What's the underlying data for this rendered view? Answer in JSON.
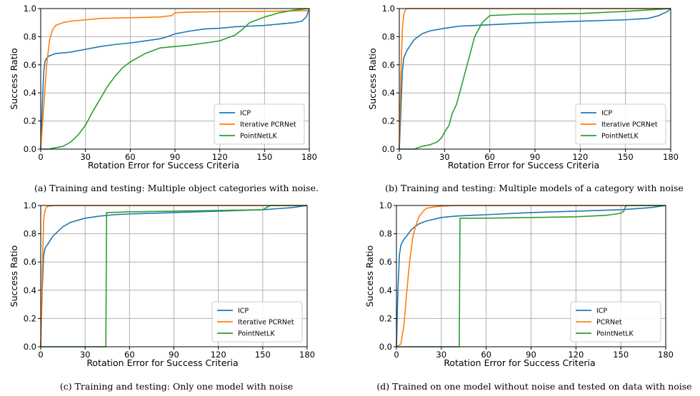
{
  "colors": {
    "ICP": "#1f77b4",
    "Iterative PCRNet": "#ff7f0e",
    "PCRNet": "#ff7f0e",
    "PointNetLK": "#2ca02c",
    "grid": "#b0b0b0"
  },
  "chart_data": [
    {
      "type": "line",
      "caption": "(a) Training and testing: Multiple object categories with noise.",
      "xlabel": "Rotation Error for Success Criteria",
      "ylabel": "Success Ratio",
      "xlim": [
        0,
        180
      ],
      "ylim": [
        0,
        1
      ],
      "xticks": [
        "0",
        "30",
        "60",
        "90",
        "120",
        "150",
        "180"
      ],
      "yticks": [
        "0.0",
        "0.2",
        "0.4",
        "0.6",
        "0.8",
        "1.0"
      ],
      "grid": true,
      "legend_position": "lower-right",
      "series": [
        {
          "name": "ICP",
          "x": [
            0,
            1,
            2,
            3,
            5,
            10,
            20,
            30,
            40,
            50,
            60,
            70,
            80,
            85,
            90,
            95,
            100,
            110,
            120,
            130,
            140,
            150,
            160,
            170,
            175,
            178,
            180
          ],
          "y": [
            0,
            0.3,
            0.55,
            0.63,
            0.66,
            0.68,
            0.69,
            0.71,
            0.73,
            0.745,
            0.755,
            0.77,
            0.785,
            0.8,
            0.82,
            0.83,
            0.84,
            0.855,
            0.86,
            0.87,
            0.875,
            0.88,
            0.89,
            0.9,
            0.91,
            0.94,
            1.0
          ]
        },
        {
          "name": "Iterative PCRNet",
          "x": [
            0,
            2,
            4,
            6,
            8,
            10,
            15,
            20,
            30,
            40,
            60,
            80,
            88,
            90,
            100,
            120,
            150,
            180
          ],
          "y": [
            0,
            0.3,
            0.6,
            0.78,
            0.85,
            0.88,
            0.9,
            0.91,
            0.92,
            0.93,
            0.935,
            0.94,
            0.95,
            0.97,
            0.975,
            0.978,
            0.98,
            0.985
          ]
        },
        {
          "name": "PointNetLK",
          "x": [
            0,
            5,
            10,
            15,
            20,
            25,
            30,
            35,
            40,
            45,
            50,
            55,
            60,
            65,
            70,
            75,
            80,
            90,
            100,
            110,
            120,
            130,
            135,
            140,
            150,
            160,
            170,
            180
          ],
          "y": [
            0,
            0.0,
            0.01,
            0.02,
            0.05,
            0.1,
            0.17,
            0.27,
            0.36,
            0.45,
            0.52,
            0.58,
            0.62,
            0.65,
            0.68,
            0.7,
            0.72,
            0.73,
            0.74,
            0.755,
            0.77,
            0.81,
            0.85,
            0.9,
            0.94,
            0.97,
            0.99,
            1.0
          ]
        }
      ]
    },
    {
      "type": "line",
      "caption": "(b) Training and testing: Multiple models of a category with noise",
      "xlabel": "Rotation Error for Success Criteria",
      "ylabel": "Success Ratio",
      "xlim": [
        0,
        180
      ],
      "ylim": [
        0,
        1
      ],
      "xticks": [
        "0",
        "30",
        "60",
        "90",
        "120",
        "150",
        "180"
      ],
      "yticks": [
        "0.0",
        "0.2",
        "0.4",
        "0.6",
        "0.8",
        "1.0"
      ],
      "grid": true,
      "legend_position": "lower-right",
      "series": [
        {
          "name": "ICP",
          "x": [
            0,
            1,
            2,
            3,
            5,
            8,
            10,
            15,
            20,
            30,
            40,
            50,
            60,
            90,
            120,
            150,
            165,
            172,
            178,
            180
          ],
          "y": [
            0,
            0.25,
            0.55,
            0.65,
            0.7,
            0.75,
            0.78,
            0.82,
            0.84,
            0.86,
            0.875,
            0.88,
            0.885,
            0.9,
            0.91,
            0.92,
            0.93,
            0.95,
            0.98,
            1.0
          ]
        },
        {
          "name": "Iterative PCRNet",
          "x": [
            0,
            1,
            2,
            3,
            4,
            5,
            10,
            180
          ],
          "y": [
            0,
            0.5,
            0.85,
            0.96,
            0.99,
            1.0,
            1.0,
            1.0
          ]
        },
        {
          "name": "PointNetLK",
          "x": [
            0,
            10,
            15,
            20,
            25,
            28,
            30,
            33,
            35,
            38,
            40,
            43,
            45,
            48,
            50,
            53,
            55,
            58,
            60,
            70,
            80,
            90,
            120,
            130,
            150,
            165,
            180
          ],
          "y": [
            0,
            0.0,
            0.02,
            0.03,
            0.05,
            0.08,
            0.12,
            0.17,
            0.25,
            0.32,
            0.4,
            0.52,
            0.6,
            0.72,
            0.8,
            0.86,
            0.9,
            0.93,
            0.95,
            0.955,
            0.96,
            0.96,
            0.965,
            0.97,
            0.98,
            0.99,
            1.0
          ]
        }
      ]
    },
    {
      "type": "line",
      "caption": "(c) Training and testing: Only one model with noise",
      "xlabel": "Rotation Error for Success Criteria",
      "ylabel": "Success Ratio",
      "xlim": [
        0,
        180
      ],
      "ylim": [
        0,
        1
      ],
      "xticks": [
        "0",
        "30",
        "60",
        "90",
        "120",
        "150",
        "180"
      ],
      "yticks": [
        "0.0",
        "0.2",
        "0.4",
        "0.6",
        "0.8",
        "1.0"
      ],
      "grid": true,
      "legend_position": "lower-right",
      "series": [
        {
          "name": "ICP",
          "x": [
            0,
            1,
            2,
            3,
            5,
            8,
            10,
            15,
            20,
            30,
            40,
            50,
            60,
            90,
            120,
            150,
            170,
            180
          ],
          "y": [
            0,
            0.4,
            0.65,
            0.7,
            0.73,
            0.78,
            0.8,
            0.85,
            0.88,
            0.91,
            0.925,
            0.935,
            0.94,
            0.95,
            0.96,
            0.97,
            0.985,
            1.0
          ]
        },
        {
          "name": "Iterative PCRNet",
          "x": [
            0,
            1,
            2,
            3,
            4,
            5,
            10,
            180
          ],
          "y": [
            0,
            0.5,
            0.9,
            0.97,
            0.99,
            0.995,
            1.0,
            1.0
          ]
        },
        {
          "name": "PointNetLK",
          "x": [
            0,
            44,
            44.5,
            45,
            60,
            90,
            120,
            150,
            155,
            180
          ],
          "y": [
            0,
            0.0,
            0.95,
            0.95,
            0.955,
            0.96,
            0.965,
            0.97,
            1.0,
            1.0
          ]
        }
      ]
    },
    {
      "type": "line",
      "caption": "(d) Trained on one model without noise and tested on data with noise",
      "xlabel": "Rotation Error for Success Criteria",
      "ylabel": "Success Ratio",
      "xlim": [
        0,
        180
      ],
      "ylim": [
        0,
        1
      ],
      "xticks": [
        "0",
        "30",
        "60",
        "90",
        "120",
        "150",
        "180"
      ],
      "yticks": [
        "0.0",
        "0.2",
        "0.4",
        "0.6",
        "0.8",
        "1.0"
      ],
      "grid": true,
      "legend_position": "lower-right",
      "series": [
        {
          "name": "ICP",
          "x": [
            0,
            1,
            2,
            3,
            5,
            8,
            10,
            15,
            20,
            30,
            40,
            50,
            60,
            90,
            120,
            150,
            170,
            180
          ],
          "y": [
            0,
            0.4,
            0.65,
            0.72,
            0.76,
            0.8,
            0.83,
            0.87,
            0.89,
            0.915,
            0.925,
            0.93,
            0.935,
            0.95,
            0.96,
            0.97,
            0.985,
            1.0
          ]
        },
        {
          "name": "PCRNet",
          "x": [
            0,
            3,
            5,
            7,
            9,
            11,
            13,
            15,
            18,
            20,
            25,
            30,
            40,
            60,
            180
          ],
          "y": [
            0,
            0.02,
            0.15,
            0.4,
            0.62,
            0.78,
            0.86,
            0.92,
            0.96,
            0.98,
            0.99,
            0.995,
            1.0,
            1.0,
            1.0
          ]
        },
        {
          "name": "PointNetLK",
          "x": [
            0,
            42,
            42.5,
            43,
            60,
            90,
            120,
            140,
            150,
            152,
            153,
            154,
            180
          ],
          "y": [
            0,
            0.0,
            0.91,
            0.91,
            0.91,
            0.915,
            0.92,
            0.93,
            0.945,
            0.96,
            0.99,
            1.0,
            1.0
          ]
        }
      ]
    }
  ]
}
